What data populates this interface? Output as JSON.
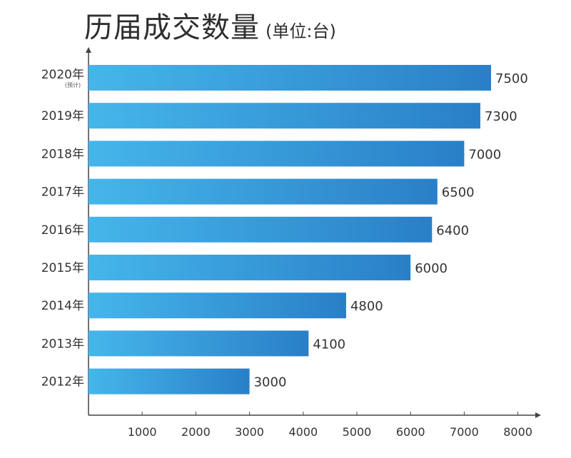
{
  "title": {
    "main": "历届成交数量",
    "unit": "(单位:台)"
  },
  "colors": {
    "bar_start": "#45b6ea",
    "bar_end": "#2a7fc7",
    "axis": "#444444",
    "text": "#333333"
  },
  "chart_data": {
    "type": "bar",
    "orientation": "horizontal",
    "categories": [
      "2020年",
      "2019年",
      "2018年",
      "2017年",
      "2016年",
      "2015年",
      "2014年",
      "2013年",
      "2012年"
    ],
    "category_notes": [
      "(预计)",
      "",
      "",
      "",
      "",
      "",
      "",
      "",
      ""
    ],
    "values": [
      7500,
      7300,
      7000,
      6500,
      6400,
      6000,
      4800,
      4100,
      3000
    ],
    "value_labels": [
      "7500",
      "7300",
      "7000",
      "6500",
      "6400",
      "6000",
      "4800",
      "4100",
      "3000"
    ],
    "x_ticks": [
      1000,
      2000,
      3000,
      4000,
      5000,
      6000,
      7000,
      8000
    ],
    "x_tick_labels": [
      "1000",
      "2000",
      "3000",
      "4000",
      "5000",
      "6000",
      "7000",
      "8000"
    ],
    "xlim": [
      0,
      8000
    ],
    "grid": false,
    "legend": "none"
  }
}
